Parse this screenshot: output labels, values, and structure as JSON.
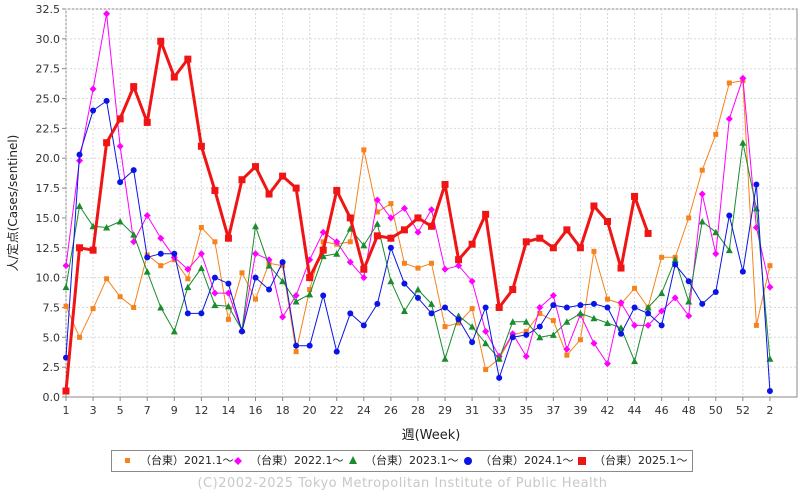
{
  "chart_data": {
    "type": "line",
    "xlabel": "週(Week)",
    "ylabel": "人/定点(Cases/sentinel)",
    "ylim": [
      0,
      32.5
    ],
    "xlim": [
      0,
      54
    ],
    "yticks": [
      "0.0",
      "2.5",
      "5.0",
      "7.5",
      "10.0",
      "12.5",
      "15.0",
      "17.5",
      "20.0",
      "22.5",
      "25.0",
      "27.5",
      "30.0",
      "32.5"
    ],
    "xticks": [
      "1",
      "3",
      "5",
      "7",
      "9",
      "12",
      "14",
      "16",
      "18",
      "20",
      "22",
      "24",
      "26",
      "28",
      "29",
      "31",
      "33",
      "35",
      "37",
      "39",
      "42",
      "44",
      "46",
      "48",
      "50",
      "52",
      "2"
    ],
    "grid": true,
    "legend_position": "bottom",
    "series": [
      {
        "name": "（台東）2021.1〜",
        "color": "#f7821b",
        "marker": "square-small",
        "width": 1,
        "values": [
          7.6,
          5.0,
          7.4,
          9.9,
          8.4,
          7.5,
          11.9,
          11.0,
          11.5,
          9.9,
          14.2,
          13.0,
          6.5,
          10.4,
          8.2,
          11.2,
          11.0,
          3.8,
          9.0,
          13.0,
          12.8,
          13.0,
          20.7,
          15.5,
          16.2,
          11.2,
          10.8,
          11.2,
          5.9,
          6.2,
          7.4,
          2.3,
          3.2,
          5.2,
          5.5,
          7.0,
          6.4,
          3.5,
          4.8,
          12.2,
          8.2,
          7.8,
          9.1,
          7.5,
          11.7,
          11.7,
          15.0,
          19.0,
          22.0,
          26.3,
          26.5,
          6.0,
          11.0
        ]
      },
      {
        "name": "（台東）2022.1〜",
        "color": "#ff00ff",
        "marker": "diamond",
        "width": 1,
        "values": [
          11.0,
          19.8,
          25.8,
          32.1,
          21.0,
          13.0,
          15.2,
          13.3,
          11.7,
          10.7,
          12.0,
          8.7,
          8.7,
          5.5,
          12.0,
          11.5,
          6.7,
          8.5,
          11.5,
          13.8,
          13.0,
          11.3,
          10.0,
          16.5,
          15.0,
          15.8,
          13.8,
          15.7,
          10.7,
          11.0,
          9.7,
          5.5,
          3.4,
          5.3,
          3.4,
          7.5,
          8.5,
          4.0,
          6.9,
          4.5,
          2.8,
          7.9,
          6.0,
          6.0,
          7.2,
          8.3,
          6.8,
          17.0,
          12.0,
          23.3,
          26.7,
          14.2,
          9.2
        ]
      },
      {
        "name": "（台東）2023.1〜",
        "color": "#1a8c2e",
        "marker": "triangle",
        "width": 1,
        "values": [
          9.2,
          16.0,
          14.3,
          14.2,
          14.7,
          13.6,
          10.5,
          7.5,
          5.5,
          9.2,
          10.8,
          7.7,
          7.6,
          5.6,
          14.3,
          11.0,
          9.7,
          8.0,
          8.6,
          11.8,
          12.0,
          14.1,
          12.7,
          14.5,
          9.7,
          7.2,
          9.0,
          7.8,
          3.2,
          6.8,
          5.9,
          4.5,
          3.2,
          6.3,
          6.3,
          5.0,
          5.2,
          6.3,
          7.0,
          6.6,
          6.2,
          5.8,
          3.0,
          7.5,
          8.7,
          11.5,
          8.0,
          14.7,
          13.8,
          12.3,
          21.3,
          15.8,
          3.2
        ]
      },
      {
        "name": "（台東）2024.1〜",
        "color": "#0a14e6",
        "marker": "circle",
        "width": 1,
        "values": [
          3.3,
          20.3,
          24.0,
          24.8,
          18.0,
          19.0,
          11.7,
          12.0,
          12.0,
          7.0,
          7.0,
          10.0,
          9.5,
          5.5,
          10.0,
          9.0,
          11.3,
          4.3,
          4.3,
          8.5,
          3.8,
          7.0,
          6.0,
          7.8,
          12.5,
          9.5,
          8.3,
          7.0,
          7.5,
          6.5,
          4.6,
          7.5,
          1.6,
          5.0,
          5.2,
          5.9,
          7.7,
          7.5,
          7.7,
          7.8,
          7.5,
          5.3,
          7.5,
          7.0,
          6.0,
          11.1,
          9.7,
          7.8,
          8.8,
          15.2,
          10.5,
          17.8,
          0.5
        ]
      },
      {
        "name": "（台東）2025.1〜",
        "color": "#f01414",
        "marker": "square",
        "width": 3,
        "values": [
          0.5,
          12.5,
          12.3,
          21.3,
          23.3,
          26.0,
          23.0,
          29.8,
          26.8,
          28.3,
          21.0,
          17.3,
          13.3,
          18.2,
          19.3,
          17.0,
          18.5,
          17.5,
          10.0,
          12.3,
          17.3,
          15.0,
          10.7,
          13.5,
          13.3,
          14.0,
          15.0,
          14.3,
          17.8,
          11.5,
          12.8,
          15.3,
          7.5,
          9.0,
          13.0,
          13.3,
          12.5,
          14.0,
          12.5,
          16.0,
          14.7,
          10.8,
          16.8,
          13.7
        ]
      }
    ]
  },
  "credit": "(C)2002-2025 Tokyo Metropolitan Institute of Public Health"
}
